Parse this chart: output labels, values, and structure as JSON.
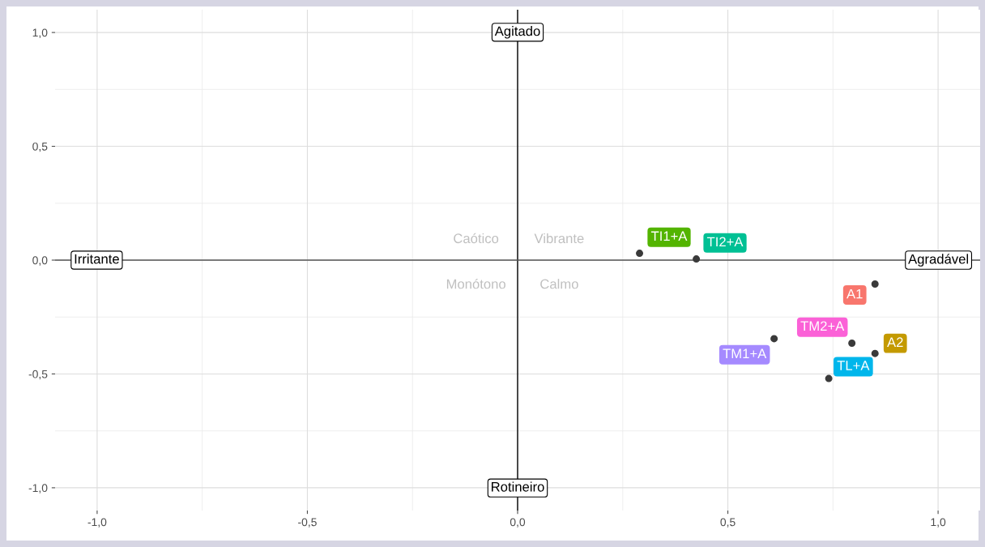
{
  "chart_data": {
    "type": "scatter",
    "marker": "circle",
    "grid": true,
    "legend": false,
    "xlim": [
      -1.1,
      1.1
    ],
    "ylim": [
      -1.1,
      1.1
    ],
    "xticks": [
      {
        "value": -1.0,
        "label": "-1,0"
      },
      {
        "value": -0.5,
        "label": "-0,5"
      },
      {
        "value": 0.0,
        "label": "0,0"
      },
      {
        "value": 0.5,
        "label": "0,5"
      },
      {
        "value": 1.0,
        "label": "1,0"
      }
    ],
    "yticks": [
      {
        "value": -1.0,
        "label": "-1,0"
      },
      {
        "value": -0.5,
        "label": "-0,5"
      },
      {
        "value": 0.0,
        "label": "0,0"
      },
      {
        "value": 0.5,
        "label": "0,5"
      },
      {
        "value": 1.0,
        "label": "1,0"
      }
    ],
    "ref_lines": [
      {
        "axis": "x",
        "value": 0,
        "color": "#000000"
      },
      {
        "axis": "y",
        "value": 0,
        "color": "#555555"
      }
    ],
    "series": [
      {
        "name": "TI1+A",
        "color": "#3a3a3a",
        "x": [
          0.29
        ],
        "values": [
          0.03
        ]
      },
      {
        "name": "TI2+A",
        "color": "#3a3a3a",
        "x": [
          0.425
        ],
        "values": [
          0.005
        ]
      },
      {
        "name": "A1",
        "color": "#3a3a3a",
        "x": [
          0.85
        ],
        "values": [
          -0.105
        ]
      },
      {
        "name": "TM1+A",
        "color": "#3a3a3a",
        "x": [
          0.61
        ],
        "values": [
          -0.345
        ]
      },
      {
        "name": "TM2+A",
        "color": "#3a3a3a",
        "x": [
          0.795
        ],
        "values": [
          -0.365
        ]
      },
      {
        "name": "A2",
        "color": "#3a3a3a",
        "x": [
          0.85
        ],
        "values": [
          -0.41
        ]
      },
      {
        "name": "TL+A",
        "color": "#3a3a3a",
        "x": [
          0.74
        ],
        "values": [
          -0.52
        ]
      }
    ],
    "annotations": [
      "Agitado",
      "Rotineiro",
      "Irritante",
      "Agradável",
      "Caótico",
      "Vibrante",
      "Monótono",
      "Calmo"
    ]
  }
}
